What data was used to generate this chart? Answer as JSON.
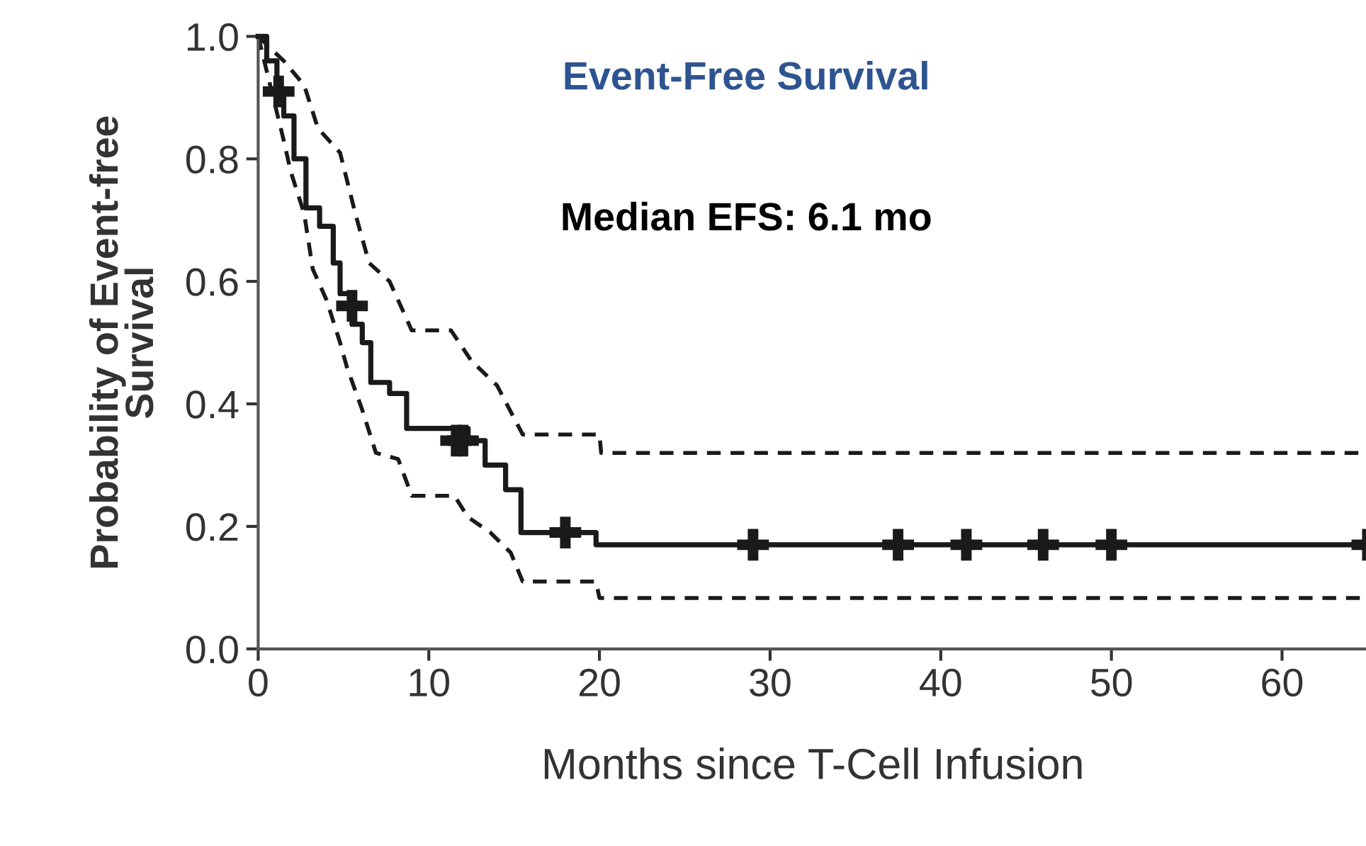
{
  "chart_data": {
    "type": "step",
    "title": "Event-Free Survival",
    "xlabel": "Months since T-Cell Infusion",
    "ylabel": "Probability of Event-free\nSurvival",
    "annotations": [
      "Median EFS: 6.1 mo"
    ],
    "xlim": [
      0,
      65
    ],
    "ylim": [
      0,
      1.0
    ],
    "xticks": [
      0,
      10,
      20,
      30,
      40,
      50,
      60
    ],
    "yticks": [
      {
        "value": 0,
        "label": "0.0"
      },
      0.2,
      0.4,
      0.6,
      0.8,
      {
        "value": 1,
        "label": "1.0"
      }
    ],
    "grid": false,
    "legend": false,
    "series": [
      {
        "color": "#1a1a1a",
        "line_style": "solid",
        "x": [
          0,
          0.5,
          1.1,
          1.5,
          2.1,
          2.8,
          3.6,
          4.4,
          4.8,
          5.5,
          6.1,
          6.6,
          7.7,
          8.7,
          12.3,
          13.3,
          14.5,
          15.4,
          19.8,
          65
        ],
        "values": [
          1.0,
          0.96,
          0.91,
          0.87,
          0.8,
          0.72,
          0.69,
          0.63,
          0.58,
          0.53,
          0.5,
          0.435,
          0.417,
          0.36,
          0.34,
          0.3,
          0.26,
          0.19,
          0.17,
          0.17
        ]
      },
      {
        "type": "line",
        "color": "#1a1a1a",
        "line_style": "dashed",
        "x": [
          0,
          1.5,
          2.7,
          3.5,
          4.8,
          5.7,
          6.5,
          7.7,
          9.0,
          11.3,
          12.5,
          14,
          15.5,
          20,
          20.1,
          65
        ],
        "values": [
          1.0,
          0.96,
          0.92,
          0.85,
          0.81,
          0.71,
          0.63,
          0.6,
          0.52,
          0.52,
          0.47,
          0.43,
          0.35,
          0.35,
          0.32,
          0.32
        ]
      },
      {
        "type": "line",
        "color": "#1a1a1a",
        "line_style": "dashed",
        "x": [
          0,
          1.5,
          1.9,
          2.7,
          3.2,
          4.0,
          4.8,
          5.2,
          6.1,
          6.9,
          8.2,
          9.0,
          11.5,
          12.3,
          13.6,
          14.8,
          15.5,
          19.8,
          20.0,
          65
        ],
        "values": [
          1.0,
          0.83,
          0.78,
          0.71,
          0.62,
          0.57,
          0.5,
          0.46,
          0.39,
          0.32,
          0.31,
          0.25,
          0.25,
          0.215,
          0.19,
          0.157,
          0.11,
          0.11,
          0.083,
          0.083
        ]
      },
      {
        "type": "scatter",
        "color": "#1a1a1a",
        "marker": "cross",
        "x": [
          1.2,
          5.5,
          11.6,
          12.0,
          18,
          29,
          37.5,
          41.5,
          46,
          50,
          65
        ],
        "values": [
          0.91,
          0.56,
          0.34,
          0.34,
          0.19,
          0.17,
          0.17,
          0.17,
          0.17,
          0.17,
          0.17
        ]
      }
    ]
  }
}
